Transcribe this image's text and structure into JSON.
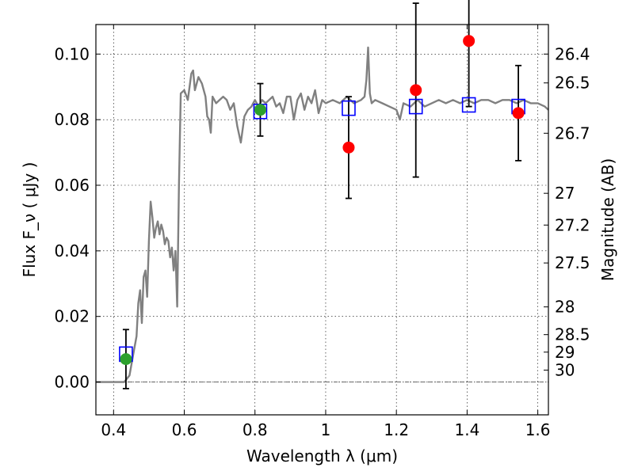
{
  "chart_data": {
    "type": "scatter",
    "xlabel": "Wavelength  λ (μm)",
    "ylabel": "Flux  F_ν ( μJy )",
    "ylabel_right": "Magnitude (AB)",
    "xlim": [
      0.35,
      1.63
    ],
    "ylim": [
      -0.01,
      0.109
    ],
    "grid": true,
    "x_ticks": [
      {
        "value": 0.4,
        "label": "0.4"
      },
      {
        "value": 0.6,
        "label": "0.6"
      },
      {
        "value": 0.8,
        "label": "0.8"
      },
      {
        "value": 1.0,
        "label": "1"
      },
      {
        "value": 1.2,
        "label": "1.2"
      },
      {
        "value": 1.4,
        "label": "1.4"
      },
      {
        "value": 1.6,
        "label": "1.6"
      }
    ],
    "y_ticks": [
      {
        "value": 0.0,
        "label": "0.00"
      },
      {
        "value": 0.02,
        "label": "0.02"
      },
      {
        "value": 0.04,
        "label": "0.04"
      },
      {
        "value": 0.06,
        "label": "0.06"
      },
      {
        "value": 0.08,
        "label": "0.08"
      },
      {
        "value": 0.1,
        "label": "0.10"
      }
    ],
    "right_ticks": [
      {
        "label": "26.4"
      },
      {
        "label": "26.5"
      },
      {
        "label": "26.7"
      },
      {
        "label": "27"
      },
      {
        "label": "27.2"
      },
      {
        "label": "27.5"
      },
      {
        "label": "28"
      },
      {
        "label": "28.5"
      },
      {
        "label": "29"
      },
      {
        "label": "30"
      }
    ],
    "model_spectrum": {
      "color": "#808080",
      "x": [
        0.35,
        0.4,
        0.43,
        0.445,
        0.455,
        0.465,
        0.47,
        0.475,
        0.48,
        0.485,
        0.49,
        0.495,
        0.5,
        0.505,
        0.51,
        0.515,
        0.52,
        0.525,
        0.53,
        0.535,
        0.54,
        0.545,
        0.55,
        0.555,
        0.56,
        0.565,
        0.57,
        0.575,
        0.58,
        0.585,
        0.59,
        0.6,
        0.61,
        0.62,
        0.625,
        0.63,
        0.64,
        0.65,
        0.66,
        0.665,
        0.67,
        0.675,
        0.68,
        0.69,
        0.7,
        0.71,
        0.72,
        0.73,
        0.74,
        0.75,
        0.76,
        0.77,
        0.78,
        0.79,
        0.8,
        0.81,
        0.82,
        0.83,
        0.84,
        0.85,
        0.86,
        0.87,
        0.88,
        0.89,
        0.9,
        0.91,
        0.92,
        0.93,
        0.94,
        0.95,
        0.96,
        0.97,
        0.98,
        0.99,
        1.0,
        1.02,
        1.04,
        1.06,
        1.08,
        1.1,
        1.11,
        1.115,
        1.12,
        1.125,
        1.13,
        1.14,
        1.16,
        1.18,
        1.2,
        1.21,
        1.22,
        1.24,
        1.26,
        1.28,
        1.3,
        1.32,
        1.34,
        1.36,
        1.38,
        1.4,
        1.42,
        1.44,
        1.46,
        1.48,
        1.5,
        1.52,
        1.54,
        1.56,
        1.58,
        1.6,
        1.62,
        1.63
      ],
      "y": [
        0.0,
        0.0,
        0.0,
        0.002,
        0.008,
        0.014,
        0.024,
        0.028,
        0.018,
        0.032,
        0.034,
        0.026,
        0.043,
        0.055,
        0.05,
        0.044,
        0.047,
        0.049,
        0.045,
        0.048,
        0.046,
        0.042,
        0.044,
        0.043,
        0.038,
        0.041,
        0.034,
        0.04,
        0.023,
        0.06,
        0.088,
        0.089,
        0.086,
        0.094,
        0.095,
        0.089,
        0.093,
        0.091,
        0.087,
        0.081,
        0.08,
        0.076,
        0.087,
        0.085,
        0.086,
        0.087,
        0.086,
        0.083,
        0.085,
        0.078,
        0.073,
        0.081,
        0.083,
        0.084,
        0.086,
        0.084,
        0.086,
        0.085,
        0.086,
        0.087,
        0.084,
        0.085,
        0.082,
        0.087,
        0.087,
        0.08,
        0.086,
        0.088,
        0.083,
        0.087,
        0.085,
        0.089,
        0.082,
        0.086,
        0.085,
        0.086,
        0.085,
        0.087,
        0.085,
        0.086,
        0.087,
        0.092,
        0.102,
        0.088,
        0.085,
        0.086,
        0.085,
        0.084,
        0.083,
        0.08,
        0.085,
        0.084,
        0.086,
        0.084,
        0.085,
        0.086,
        0.085,
        0.086,
        0.085,
        0.086,
        0.085,
        0.086,
        0.086,
        0.085,
        0.086,
        0.086,
        0.085,
        0.086,
        0.085,
        0.085,
        0.084,
        0.083
      ]
    },
    "series": [
      {
        "marker": "open-square",
        "color": "#0000ff",
        "x": [
          0.435,
          0.815,
          1.065,
          1.255,
          1.405,
          1.545
        ],
        "y": [
          0.0085,
          0.0825,
          0.0835,
          0.084,
          0.0845,
          0.084
        ]
      },
      {
        "marker": "circle",
        "color": "#2ca02c",
        "x": [
          0.435,
          0.815
        ],
        "y": [
          0.007,
          0.083
        ],
        "yerr": [
          0.009,
          0.008
        ]
      },
      {
        "marker": "circle",
        "color": "#ff0000",
        "x": [
          1.065,
          1.255,
          1.405,
          1.545
        ],
        "y": [
          0.0715,
          0.089,
          0.104,
          0.082
        ],
        "yerr": [
          0.0155,
          0.0265,
          0.02,
          0.0145
        ]
      }
    ]
  }
}
